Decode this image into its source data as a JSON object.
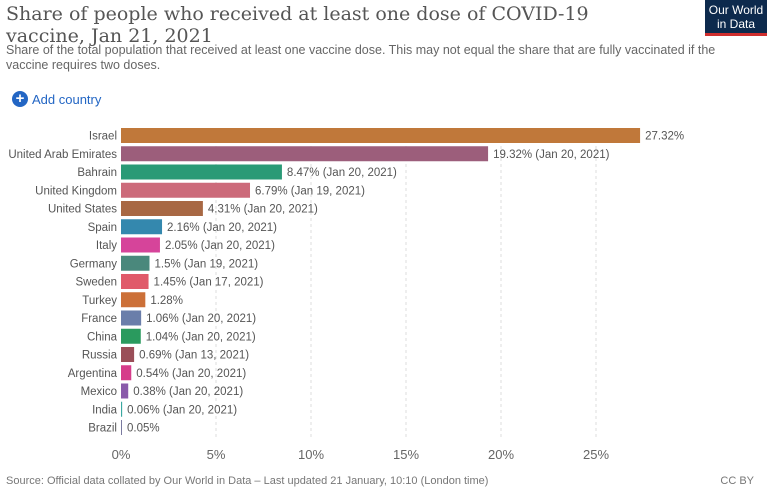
{
  "header": {
    "title": "Share of people who received at least one dose of COVID-19 vaccine, Jan 21, 2021",
    "subtitle": "Share of the total population that received at least one vaccine dose. This may not equal the share that are fully vaccinated if the vaccine requires two doses.",
    "logo_line1": "Our World",
    "logo_line2": "in Data",
    "add_country": "Add country"
  },
  "footer": {
    "source": "Source: Official data collated by Our World in Data – Last updated 21 January, 10:10 (London time)",
    "license": "CC BY"
  },
  "chart_data": {
    "type": "bar",
    "orientation": "horizontal",
    "title": "Share of people who received at least one dose of COVID-19 vaccine, Jan 21, 2021",
    "xlim": [
      0,
      28
    ],
    "xticks": [
      0,
      5,
      10,
      15,
      20,
      25
    ],
    "xtick_labels": [
      "0%",
      "5%",
      "10%",
      "15%",
      "20%",
      "25%"
    ],
    "grid": "vertical dashed",
    "bars": [
      {
        "country": "Israel",
        "value": 27.32,
        "label": "27.32%",
        "color": "#c0783a"
      },
      {
        "country": "United Arab Emirates",
        "value": 19.32,
        "label": "19.32% (Jan 20, 2021)",
        "color": "#9c5e7b"
      },
      {
        "country": "Bahrain",
        "value": 8.47,
        "label": "8.47% (Jan 20, 2021)",
        "color": "#2a9a76"
      },
      {
        "country": "United Kingdom",
        "value": 6.79,
        "label": "6.79% (Jan 19, 2021)",
        "color": "#cc6a7a"
      },
      {
        "country": "United States",
        "value": 4.31,
        "label": "4.31% (Jan 20, 2021)",
        "color": "#a86844"
      },
      {
        "country": "Spain",
        "value": 2.16,
        "label": "2.16% (Jan 20, 2021)",
        "color": "#3488ae"
      },
      {
        "country": "Italy",
        "value": 2.05,
        "label": "2.05% (Jan 20, 2021)",
        "color": "#d6449a"
      },
      {
        "country": "Germany",
        "value": 1.5,
        "label": "1.5% (Jan 19, 2021)",
        "color": "#4a887c"
      },
      {
        "country": "Sweden",
        "value": 1.45,
        "label": "1.45% (Jan 17, 2021)",
        "color": "#e05a6a"
      },
      {
        "country": "Turkey",
        "value": 1.28,
        "label": "1.28%",
        "color": "#cc7038"
      },
      {
        "country": "France",
        "value": 1.06,
        "label": "1.06% (Jan 20, 2021)",
        "color": "#6a7eaa"
      },
      {
        "country": "China",
        "value": 1.04,
        "label": "1.04% (Jan 20, 2021)",
        "color": "#2a9a5e"
      },
      {
        "country": "Russia",
        "value": 0.69,
        "label": "0.69% (Jan 13, 2021)",
        "color": "#9a4e58"
      },
      {
        "country": "Argentina",
        "value": 0.54,
        "label": "0.54% (Jan 20, 2021)",
        "color": "#d63c8a"
      },
      {
        "country": "Mexico",
        "value": 0.38,
        "label": "0.38% (Jan 20, 2021)",
        "color": "#8a5aaa"
      },
      {
        "country": "India",
        "value": 0.06,
        "label": "0.06% (Jan 20, 2021)",
        "color": "#3aa8a0"
      },
      {
        "country": "Brazil",
        "value": 0.05,
        "label": "0.05%",
        "color": "#7a7aa0"
      }
    ]
  }
}
